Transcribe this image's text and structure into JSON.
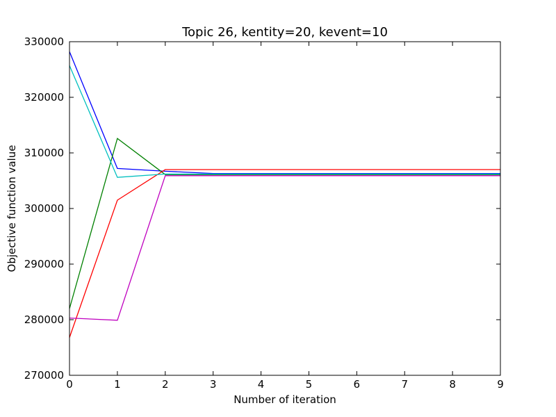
{
  "chart_data": {
    "type": "line",
    "title": "Topic 26, kentity=20, kevent=10",
    "xlabel": "Number of iteration",
    "ylabel": "Objective function value",
    "xlim": [
      0,
      9
    ],
    "ylim": [
      270000,
      330000
    ],
    "xticks": [
      "0",
      "1",
      "2",
      "3",
      "4",
      "5",
      "6",
      "7",
      "8",
      "9"
    ],
    "yticks": [
      "270000",
      "280000",
      "290000",
      "300000",
      "310000",
      "320000",
      "330000"
    ],
    "grid": false,
    "x": [
      0,
      1,
      2,
      3,
      4,
      5,
      6,
      7,
      8,
      9
    ],
    "series": [
      {
        "color": "#0000ff",
        "values": [
          328200,
          307200,
          306700,
          306300,
          306300,
          306300,
          306300,
          306300,
          306300,
          306300
        ]
      },
      {
        "color": "#008000",
        "values": [
          282000,
          312600,
          306100,
          306100,
          306100,
          306100,
          306100,
          306100,
          306100,
          306100
        ]
      },
      {
        "color": "#ff0000",
        "values": [
          276800,
          301500,
          307000,
          307000,
          307000,
          307000,
          307000,
          307000,
          307000,
          307000
        ]
      },
      {
        "color": "#00bfbf",
        "values": [
          325700,
          305600,
          306200,
          306200,
          306200,
          306200,
          306200,
          306200,
          306200,
          306200
        ]
      },
      {
        "color": "#bf00bf",
        "values": [
          280300,
          279900,
          305900,
          305900,
          305900,
          305900,
          305900,
          305900,
          305900,
          305900
        ]
      }
    ]
  }
}
